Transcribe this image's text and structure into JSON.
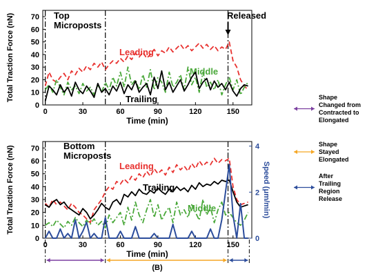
{
  "figure_label": "(B)",
  "legend": [
    {
      "label_lines": [
        "Shape",
        "Changed from",
        "Contracted to",
        "Elongated"
      ],
      "color": "#7b3fa0"
    },
    {
      "label_lines": [
        "Shape",
        "Stayed",
        "Elongated"
      ],
      "color": "#f5a623"
    },
    {
      "label_lines": [
        "After",
        "Trailing",
        "Region",
        "Release"
      ],
      "color": "#2b4c9b"
    }
  ],
  "phase_markers": {
    "x": [
      0,
      48,
      146,
      163
    ],
    "segment_colors": [
      "#7b3fa0",
      "#f5a623",
      "#2b4c9b"
    ]
  },
  "chart_data": [
    {
      "type": "line",
      "title": "Top Microposts",
      "annotation": "Released",
      "annotation_x": 146,
      "xlabel": "Time (min)",
      "ylabel": "Total Traction Force (nN)",
      "xlim": [
        -2,
        165
      ],
      "ylim": [
        0,
        75
      ],
      "xticks": [
        0,
        30,
        60,
        90,
        120,
        150
      ],
      "yticks": [
        0,
        10,
        20,
        30,
        40,
        50,
        60,
        70
      ],
      "series": [
        {
          "name": "Leading",
          "color": "#e8312f",
          "style": "dash",
          "x": [
            0,
            3,
            6,
            9,
            12,
            15,
            18,
            21,
            24,
            27,
            30,
            33,
            36,
            39,
            42,
            45,
            48,
            51,
            54,
            57,
            60,
            63,
            66,
            69,
            72,
            75,
            78,
            81,
            84,
            87,
            90,
            93,
            96,
            99,
            102,
            105,
            108,
            111,
            114,
            117,
            120,
            123,
            126,
            129,
            132,
            135,
            138,
            141,
            144,
            147,
            150,
            153,
            156,
            159,
            162
          ],
          "values": [
            15,
            26,
            20,
            18,
            22,
            25,
            20,
            27,
            24,
            29,
            26,
            31,
            28,
            33,
            30,
            34,
            28,
            32,
            35,
            33,
            37,
            34,
            39,
            36,
            41,
            38,
            42,
            37,
            40,
            44,
            39,
            43,
            41,
            46,
            42,
            45,
            48,
            44,
            47,
            43,
            46,
            49,
            45,
            48,
            44,
            47,
            43,
            46,
            44,
            50,
            35,
            30,
            20,
            15,
            12
          ]
        },
        {
          "name": "Middle",
          "color": "#4aa83a",
          "style": "dashdot",
          "x": [
            0,
            3,
            6,
            9,
            12,
            15,
            18,
            21,
            24,
            27,
            30,
            33,
            36,
            39,
            42,
            45,
            48,
            51,
            54,
            57,
            60,
            63,
            66,
            69,
            72,
            75,
            78,
            81,
            84,
            87,
            90,
            93,
            96,
            99,
            102,
            105,
            108,
            111,
            114,
            117,
            120,
            123,
            126,
            129,
            132,
            135,
            138,
            141,
            144,
            147,
            150,
            153,
            156,
            159,
            162
          ],
          "values": [
            12,
            16,
            10,
            20,
            14,
            8,
            18,
            12,
            15,
            9,
            17,
            11,
            14,
            8,
            16,
            10,
            18,
            12,
            22,
            15,
            26,
            14,
            30,
            16,
            20,
            12,
            24,
            14,
            28,
            12,
            22,
            18,
            10,
            26,
            14,
            18,
            24,
            12,
            30,
            16,
            22,
            10,
            26,
            14,
            18,
            12,
            20,
            8,
            16,
            22,
            12,
            20,
            8,
            14,
            18
          ]
        },
        {
          "name": "Trailing",
          "color": "#000000",
          "style": "solid",
          "x": [
            0,
            3,
            6,
            9,
            12,
            15,
            18,
            21,
            24,
            27,
            30,
            33,
            36,
            39,
            42,
            45,
            48,
            51,
            54,
            57,
            60,
            63,
            66,
            69,
            72,
            75,
            78,
            81,
            84,
            87,
            90,
            93,
            96,
            99,
            102,
            105,
            108,
            111,
            114,
            117,
            120,
            123,
            126,
            129,
            132,
            135,
            138,
            141,
            144,
            147,
            150,
            153,
            156,
            159,
            162
          ],
          "values": [
            3,
            15,
            12,
            8,
            16,
            10,
            14,
            7,
            18,
            12,
            9,
            15,
            11,
            6,
            17,
            10,
            13,
            8,
            15,
            11,
            18,
            9,
            16,
            12,
            19,
            10,
            14,
            17,
            8,
            22,
            13,
            27,
            12,
            18,
            10,
            15,
            20,
            11,
            16,
            22,
            26,
            13,
            18,
            21,
            12,
            19,
            14,
            17,
            12,
            18,
            11,
            7,
            13,
            16,
            15
          ]
        }
      ]
    },
    {
      "type": "line",
      "title": "Bottom Microposts",
      "xlabel": "Time (min)",
      "ylabel": "Total Traction Force (nN)",
      "y2label": "Speed (μm/min)",
      "xlim": [
        -2,
        165
      ],
      "ylim": [
        0,
        75
      ],
      "y2lim": [
        0,
        4.2
      ],
      "xticks": [
        0,
        30,
        60,
        90,
        120,
        150
      ],
      "yticks": [
        0,
        10,
        20,
        30,
        40,
        50,
        60,
        70
      ],
      "y2ticks": [
        0,
        2,
        4
      ],
      "series": [
        {
          "name": "Leading",
          "color": "#e8312f",
          "style": "dash",
          "axis": "left",
          "x": [
            0,
            3,
            6,
            9,
            12,
            15,
            18,
            21,
            24,
            27,
            30,
            33,
            36,
            39,
            42,
            45,
            48,
            51,
            54,
            57,
            60,
            63,
            66,
            69,
            72,
            75,
            78,
            81,
            84,
            87,
            90,
            93,
            96,
            99,
            102,
            105,
            108,
            111,
            114,
            117,
            120,
            123,
            126,
            129,
            132,
            135,
            138,
            141,
            144,
            147,
            150,
            153,
            156,
            159,
            162
          ],
          "values": [
            27,
            24,
            30,
            26,
            28,
            25,
            22,
            27,
            24,
            20,
            18,
            15,
            12,
            22,
            26,
            30,
            36,
            40,
            38,
            44,
            42,
            46,
            43,
            48,
            45,
            50,
            47,
            52,
            48,
            54,
            50,
            53,
            49,
            55,
            51,
            57,
            53,
            56,
            52,
            58,
            54,
            60,
            56,
            59,
            57,
            62,
            58,
            61,
            60,
            62,
            40,
            30,
            26,
            27,
            28
          ]
        },
        {
          "name": "Trailing",
          "color": "#000000",
          "style": "solid",
          "axis": "left",
          "x": [
            0,
            3,
            6,
            9,
            12,
            15,
            18,
            21,
            24,
            27,
            30,
            33,
            36,
            39,
            42,
            45,
            48,
            51,
            54,
            57,
            60,
            63,
            66,
            69,
            72,
            75,
            78,
            81,
            84,
            87,
            90,
            93,
            96,
            99,
            102,
            105,
            108,
            111,
            114,
            117,
            120,
            123,
            126,
            129,
            132,
            135,
            138,
            141,
            144,
            147,
            150,
            153,
            156,
            159,
            162
          ],
          "values": [
            26,
            24,
            28,
            30,
            26,
            28,
            24,
            22,
            20,
            18,
            23,
            20,
            15,
            18,
            22,
            27,
            24,
            22,
            28,
            30,
            26,
            34,
            32,
            36,
            33,
            38,
            35,
            34,
            37,
            35,
            39,
            36,
            34,
            38,
            36,
            40,
            37,
            39,
            36,
            41,
            38,
            43,
            40,
            42,
            41,
            44,
            42,
            45,
            44,
            45,
            36,
            28,
            24,
            25,
            26
          ]
        },
        {
          "name": "Middle",
          "color": "#4aa83a",
          "style": "dashdot",
          "axis": "left",
          "x": [
            0,
            3,
            6,
            9,
            12,
            15,
            18,
            21,
            24,
            27,
            30,
            33,
            36,
            39,
            42,
            45,
            48,
            51,
            54,
            57,
            60,
            63,
            66,
            69,
            72,
            75,
            78,
            81,
            84,
            87,
            90,
            93,
            96,
            99,
            102,
            105,
            108,
            111,
            114,
            117,
            120,
            123,
            126,
            129,
            132,
            135,
            138,
            141,
            144,
            147,
            150,
            153,
            156,
            159,
            162
          ],
          "values": [
            10,
            12,
            9,
            14,
            11,
            8,
            13,
            10,
            16,
            12,
            9,
            14,
            11,
            15,
            10,
            13,
            8,
            18,
            12,
            16,
            20,
            10,
            24,
            14,
            28,
            18,
            12,
            22,
            30,
            16,
            26,
            14,
            20,
            24,
            12,
            28,
            18,
            22,
            16,
            26,
            20,
            14,
            30,
            18,
            24,
            12,
            22,
            28,
            18,
            20,
            16,
            12,
            10,
            14,
            20
          ]
        },
        {
          "name": "",
          "color": "#2b4c9b",
          "style": "solid",
          "axis": "right",
          "x": [
            0,
            3,
            6,
            9,
            12,
            15,
            18,
            21,
            24,
            27,
            30,
            33,
            36,
            39,
            42,
            45,
            48,
            51,
            54,
            57,
            60,
            63,
            66,
            69,
            72,
            75,
            78,
            81,
            84,
            87,
            90,
            93,
            96,
            99,
            102,
            105,
            108,
            111,
            114,
            117,
            120,
            123,
            126,
            129,
            132,
            135,
            138,
            141,
            144,
            147,
            150,
            153,
            156,
            159,
            162
          ],
          "values": [
            0,
            0.3,
            0,
            0,
            0.4,
            0,
            0.2,
            0,
            0.8,
            0,
            0.3,
            0.7,
            0,
            0.2,
            0,
            0,
            0.9,
            0,
            0,
            0,
            0.3,
            0,
            0,
            0,
            0.5,
            0,
            0,
            0,
            0,
            0.2,
            0,
            0,
            0,
            0,
            0.6,
            0,
            0,
            0,
            0,
            0.3,
            0,
            0,
            0,
            0,
            0.4,
            0,
            0,
            0.8,
            2.0,
            3.2,
            1.0,
            0,
            1.5,
            0,
            0
          ]
        }
      ]
    }
  ]
}
